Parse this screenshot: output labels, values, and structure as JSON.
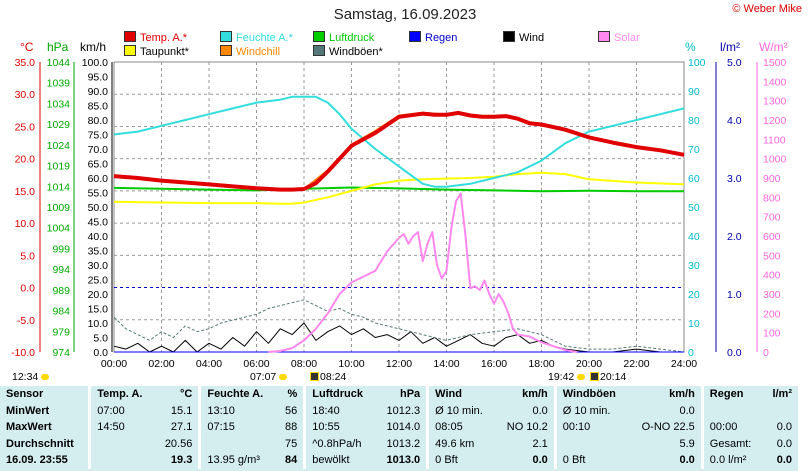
{
  "header": {
    "title": "Samstag, 16.09.2023",
    "copyright": "© Weber Mike",
    "unit_labels": {
      "celsius": "°C",
      "hpa": "hPa",
      "kmh": "km/h",
      "percent": "%",
      "lm2": "l/m²",
      "wm2": "W/m²"
    }
  },
  "legend": [
    {
      "label": "Temp. A.*",
      "color": "#e00000"
    },
    {
      "label": "Feuchte A.*",
      "color": "#33dddd"
    },
    {
      "label": "Luftdruck",
      "color": "#00cc00"
    },
    {
      "label": "Regen",
      "color": "#0000ff"
    },
    {
      "label": "Wind",
      "color": "#000000"
    },
    {
      "label": "Solar",
      "color": "#ff88ee"
    },
    {
      "label": "Taupunkt*",
      "color": "#ffff00"
    },
    {
      "label": "Windchill",
      "color": "#ff8800"
    },
    {
      "label": "Windböen*",
      "color": "#557777"
    }
  ],
  "sun": {
    "sunrise": "07:07",
    "sunset": "19:42",
    "moonrise": "08:24",
    "moonset": "20:14",
    "left_time": "12:34"
  },
  "chart_data": {
    "type": "line",
    "x_ticks": [
      "00:00",
      "02:00",
      "04:00",
      "06:00",
      "08:00",
      "10:00",
      "12:00",
      "14:00",
      "16:00",
      "18:00",
      "20:00",
      "22:00",
      "24:00"
    ],
    "axes": {
      "celsius": {
        "ticks": [
          "35.0",
          "30.0",
          "25.0",
          "20.0",
          "15.0",
          "10.0",
          "5.0",
          "0.0",
          "-5.0",
          "-10.0"
        ],
        "ylim": [
          -10,
          35
        ],
        "color": "#e00000"
      },
      "hpa": {
        "ticks": [
          "1044",
          "1039",
          "1034",
          "1029",
          "1024",
          "1019",
          "1014",
          "1009",
          "1004",
          "999",
          "994",
          "989",
          "984",
          "979",
          "974"
        ],
        "ylim": [
          974,
          1044
        ],
        "color": "#00aa00"
      },
      "kmh": {
        "ticks": [
          "100.0",
          "95.0",
          "90.0",
          "85.0",
          "80.0",
          "75.0",
          "70.0",
          "65.0",
          "60.0",
          "55.0",
          "50.0",
          "45.0",
          "40.0",
          "35.0",
          "30.0",
          "25.0",
          "20.0",
          "15.0",
          "10.0",
          "5.0",
          "0.0"
        ],
        "ylim": [
          0,
          100
        ],
        "color": "#000000"
      },
      "percent": {
        "ticks": [
          "100",
          "90",
          "80",
          "70",
          "60",
          "50",
          "40",
          "30",
          "20",
          "10",
          "0"
        ],
        "ylim": [
          0,
          100
        ],
        "color": "#00bbcc"
      },
      "lm2": {
        "ticks": [
          "5.0",
          "4.0",
          "3.0",
          "2.0",
          "1.0",
          "0.0"
        ],
        "ylim": [
          0,
          5
        ],
        "color": "#0000aa"
      },
      "wm2": {
        "ticks": [
          "1500",
          "1400",
          "1300",
          "1200",
          "1100",
          "1000",
          "900",
          "800",
          "700",
          "600",
          "500",
          "400",
          "300",
          "200",
          "100",
          "0"
        ],
        "ylim": [
          0,
          1500
        ],
        "color": "#ff66dd"
      }
    },
    "series": [
      {
        "name": "Temp. A.*",
        "axis": "celsius",
        "color": "#e00000",
        "width": 4,
        "x": [
          0,
          1,
          2,
          3,
          4,
          5,
          6,
          7,
          7.5,
          8,
          8.5,
          9,
          9.5,
          10,
          11,
          12,
          13,
          13.5,
          14,
          14.5,
          15,
          15.5,
          16,
          16.5,
          17,
          17.5,
          18,
          19,
          20,
          21,
          22,
          23,
          24
        ],
        "y": [
          17.3,
          17.0,
          16.6,
          16.3,
          16.0,
          15.7,
          15.4,
          15.2,
          15.2,
          15.3,
          16.2,
          18.0,
          20.0,
          22.0,
          24.0,
          26.5,
          27.0,
          26.8,
          26.8,
          27.1,
          26.7,
          26.5,
          26.5,
          26.6,
          26.2,
          25.5,
          25.3,
          24.5,
          23.3,
          22.5,
          21.8,
          21.3,
          20.6
        ]
      },
      {
        "name": "Windchill",
        "axis": "celsius",
        "color": "#ff8800",
        "width": 2,
        "x": [
          8,
          9,
          10,
          11,
          12,
          13,
          13.5,
          14
        ],
        "y": [
          15.3,
          18.2,
          22.2,
          24.3,
          26.7,
          27.1,
          27.0,
          26.8
        ]
      },
      {
        "name": "Feuchte A.*",
        "axis": "percent",
        "color": "#33dddd",
        "width": 2,
        "x": [
          0,
          1,
          2,
          3,
          4,
          5,
          6,
          7,
          7.5,
          8,
          8.5,
          9,
          9.5,
          10,
          11,
          12,
          13,
          13.5,
          14,
          15,
          16,
          17,
          18,
          19,
          20,
          21,
          22,
          23,
          24
        ],
        "y": [
          75,
          76,
          78,
          80,
          82,
          84,
          86,
          87,
          88,
          88,
          88,
          86,
          82,
          77,
          70,
          64,
          58,
          57,
          57,
          58,
          60,
          62,
          66,
          72,
          76,
          78,
          80,
          82,
          84
        ]
      },
      {
        "name": "Taupunkt*",
        "axis": "celsius",
        "color": "#ffff00",
        "width": 2,
        "x": [
          0,
          2,
          4,
          6,
          7,
          7.5,
          8,
          9,
          10,
          11,
          12,
          13,
          14,
          15,
          16,
          17,
          18,
          19,
          20,
          22,
          24
        ],
        "y": [
          13.3,
          13.2,
          13.1,
          13.1,
          13.0,
          13.0,
          13.2,
          14.0,
          15.0,
          16.0,
          16.6,
          16.8,
          16.9,
          17.0,
          17.2,
          17.6,
          17.8,
          17.6,
          16.8,
          16.3,
          16.0
        ]
      },
      {
        "name": "Luftdruck",
        "axis": "hpa",
        "color": "#00cc00",
        "width": 2,
        "x": [
          0,
          2,
          4,
          6,
          8,
          10,
          12,
          14,
          16,
          18,
          20,
          22,
          24
        ],
        "y": [
          1013.6,
          1013.4,
          1013.2,
          1013.0,
          1013.4,
          1013.7,
          1013.5,
          1013.2,
          1013.0,
          1012.8,
          1012.9,
          1012.8,
          1012.8
        ]
      },
      {
        "name": "Solar",
        "axis": "wm2",
        "color": "#ff88ee",
        "width": 2,
        "x": [
          6.5,
          7,
          7.5,
          8,
          8.5,
          9,
          9.5,
          10,
          10.5,
          11,
          11.5,
          12,
          12.2,
          12.4,
          12.6,
          12.8,
          13,
          13.2,
          13.4,
          13.6,
          13.8,
          14,
          14.2,
          14.4,
          14.6,
          14.8,
          15,
          15.2,
          15.4,
          15.6,
          15.8,
          16,
          16.2,
          16.4,
          16.6,
          16.8,
          17,
          17.5,
          18,
          18.5,
          19,
          19.5
        ],
        "y": [
          0,
          5,
          20,
          60,
          120,
          200,
          300,
          360,
          390,
          420,
          520,
          590,
          610,
          560,
          600,
          620,
          470,
          560,
          620,
          450,
          380,
          420,
          640,
          780,
          820,
          600,
          330,
          340,
          320,
          370,
          300,
          250,
          300,
          260,
          200,
          120,
          90,
          80,
          50,
          30,
          10,
          0
        ]
      },
      {
        "name": "Wind",
        "axis": "kmh",
        "color": "#000000",
        "width": 1,
        "x": [
          0,
          0.5,
          1,
          1.5,
          2,
          2.5,
          3,
          3.5,
          4,
          4.5,
          5,
          5.5,
          6,
          6.5,
          7,
          7.5,
          8,
          8.5,
          9,
          9.5,
          10,
          10.5,
          11,
          11.5,
          12,
          12.5,
          13,
          13.5,
          14,
          14.5,
          15,
          15.5,
          16,
          16.5,
          17,
          17.5,
          18,
          18.5,
          19,
          20,
          21,
          22,
          23,
          24
        ],
        "y": [
          2,
          1,
          3,
          0,
          2,
          0,
          4,
          0,
          3,
          1,
          5,
          2,
          7,
          3,
          8,
          6,
          10,
          4,
          7,
          9,
          6,
          8,
          5,
          6,
          4,
          7,
          3,
          5,
          2,
          4,
          6,
          3,
          2,
          5,
          6,
          3,
          4,
          2,
          1,
          0,
          0,
          1,
          0,
          0
        ]
      },
      {
        "name": "Windböen*",
        "axis": "kmh",
        "color": "#557777",
        "width": 1,
        "dash": "3,2",
        "x": [
          0,
          0.5,
          1,
          1.5,
          2,
          2.5,
          3,
          3.5,
          4,
          4.5,
          5,
          5.5,
          6,
          6.5,
          7,
          7.5,
          8,
          8.5,
          9,
          9.5,
          10,
          10.5,
          11,
          11.5,
          12,
          12.5,
          13,
          13.5,
          14,
          15,
          16,
          17,
          18,
          18.5,
          19,
          20,
          21,
          22,
          23,
          24
        ],
        "y": [
          12,
          8,
          6,
          4,
          7,
          5,
          9,
          7,
          8,
          10,
          11,
          12,
          13,
          15,
          16,
          17,
          18,
          16,
          14,
          15,
          13,
          12,
          10,
          9,
          8,
          7,
          6,
          5,
          4,
          6,
          7,
          8,
          6,
          4,
          2,
          1,
          1,
          2,
          1,
          0
        ]
      },
      {
        "name": "Regen",
        "axis": "lm2",
        "color": "#0000ff",
        "width": 1,
        "x": [
          0,
          24
        ],
        "y": [
          0,
          0
        ]
      }
    ],
    "reference_lines": [
      {
        "axis": "celsius",
        "value": 0,
        "color": "#0000cc",
        "dash": "3,3"
      }
    ],
    "grid": true
  },
  "table": {
    "headers": [
      "Sensor",
      "Temp. A.",
      "°C",
      "Feuchte A.",
      "%",
      "Luftdruck",
      "hPa",
      "Wind",
      "km/h",
      "Windböen",
      "km/h",
      "Regen",
      "l/m²"
    ],
    "rows": [
      [
        "MinWert",
        "07:00",
        "15.1",
        "13:10",
        "56",
        "18:40",
        "1012.3",
        "Ø 10 min.",
        "0.0",
        "Ø 10 min.",
        "0.0",
        "",
        ""
      ],
      [
        "MaxWert",
        "14:50",
        "27.1",
        "07:15",
        "88",
        "10:55",
        "1014.0",
        "08:05",
        "NO 10.2",
        "00:10",
        "O-NO 22.5",
        "00:00",
        "0.0"
      ],
      [
        "Durchschnitt",
        "",
        "20.56",
        "",
        "75",
        "^0.8hPa/h",
        "1013.2",
        "49.6 km",
        "2.1",
        "",
        "5.9",
        "Gesamt:",
        "0.0"
      ],
      [
        "16.09. 23:55",
        "",
        "19.3",
        "13.95 g/m³",
        "84",
        "bewölkt",
        "1013.0",
        "0 Bft",
        "0.0",
        "0 Bft",
        "0.0",
        "0.0 l/m²",
        "0.0"
      ]
    ]
  }
}
